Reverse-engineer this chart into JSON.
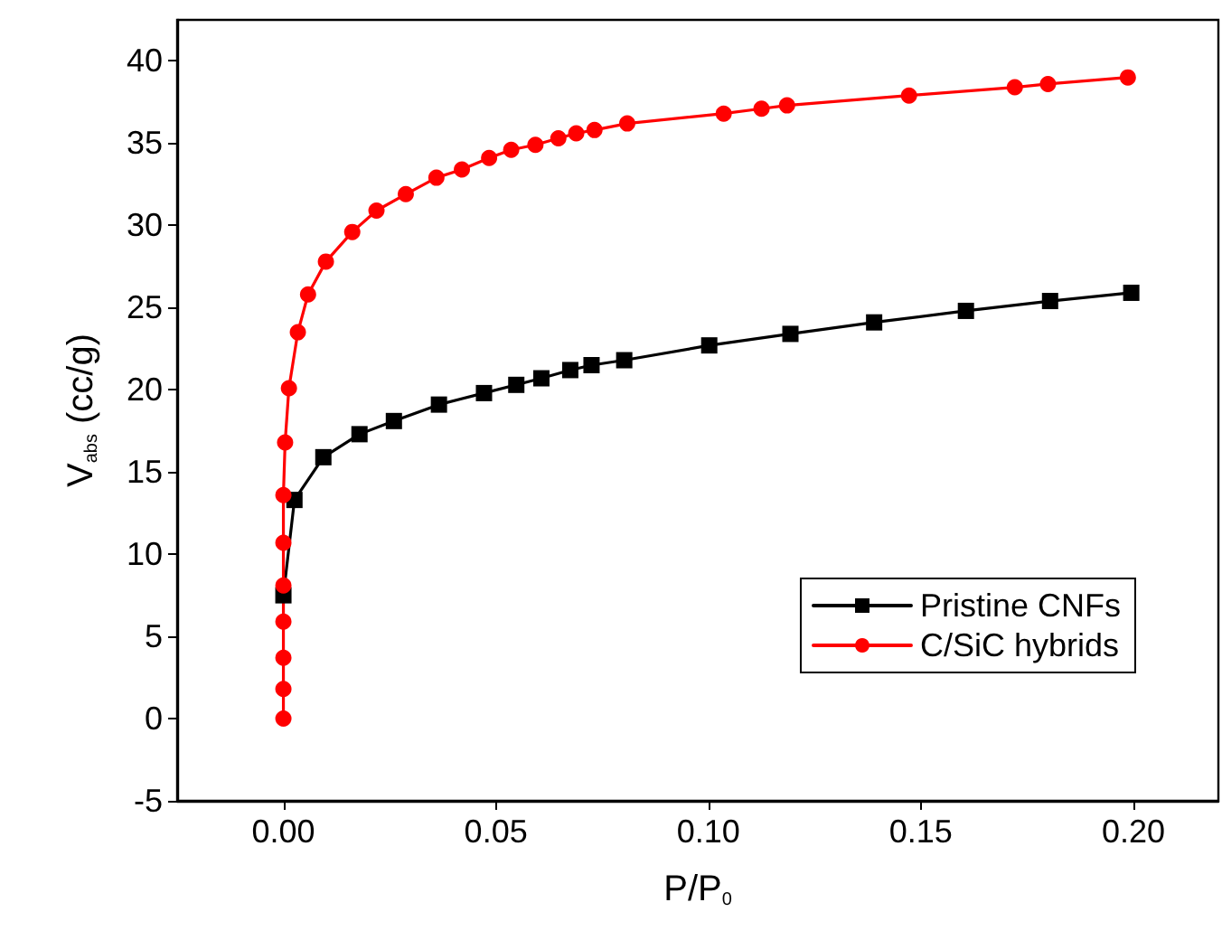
{
  "chart_data": {
    "type": "line",
    "xlabel": "P/P$_{0}$",
    "ylabel": "V$_{abs}$ (cc/g)",
    "xlim": [
      -0.025,
      0.22
    ],
    "ylim": [
      -5,
      42.5
    ],
    "xticks": [
      {
        "value": 0,
        "label": "0.00"
      },
      0.05,
      {
        "value": 0.1,
        "label": "0.10"
      },
      0.15,
      {
        "value": 0.2,
        "label": "0.20"
      }
    ],
    "yticks": [
      -5,
      0,
      5,
      10,
      15,
      20,
      25,
      30,
      35,
      40
    ],
    "grid": false,
    "legend": "bottom right",
    "line_style": "solid",
    "series": [
      {
        "name": "Pristine CNFs",
        "color": "#000000",
        "marker": "square",
        "x": [
          0,
          0.0026,
          0.0094,
          0.0179,
          0.026,
          0.0366,
          0.0472,
          0.0548,
          0.0607,
          0.0675,
          0.0725,
          0.0802,
          0.1002,
          0.1193,
          0.139,
          0.1606,
          0.1804,
          0.1995
        ],
        "values": [
          7.5,
          13.3,
          15.9,
          17.3,
          18.1,
          19.1,
          19.8,
          20.3,
          20.7,
          21.2,
          21.5,
          21.8,
          22.7,
          23.4,
          24.1,
          24.8,
          25.4,
          25.9
        ]
      },
      {
        "name": "C/SiC hybrids",
        "color": "#ff0000",
        "marker": "circle",
        "x": [
          0,
          0,
          0,
          0,
          0,
          0,
          0,
          0.0004,
          0.0013,
          0.0034,
          0.0058,
          0.01,
          0.0162,
          0.0219,
          0.0288,
          0.036,
          0.042,
          0.0484,
          0.0536,
          0.0593,
          0.0647,
          0.0689,
          0.0732,
          0.0809,
          0.1036,
          0.1125,
          0.1185,
          0.1472,
          0.1721,
          0.1799,
          0.1987
        ],
        "values": [
          0,
          1.8,
          3.7,
          5.9,
          8.1,
          10.7,
          13.6,
          16.8,
          20.1,
          23.5,
          25.8,
          27.8,
          29.6,
          30.9,
          31.9,
          32.9,
          33.4,
          34.1,
          34.6,
          34.9,
          35.3,
          35.6,
          35.8,
          36.2,
          36.8,
          37.1,
          37.3,
          37.9,
          38.4,
          38.6,
          39.0
        ]
      }
    ]
  }
}
